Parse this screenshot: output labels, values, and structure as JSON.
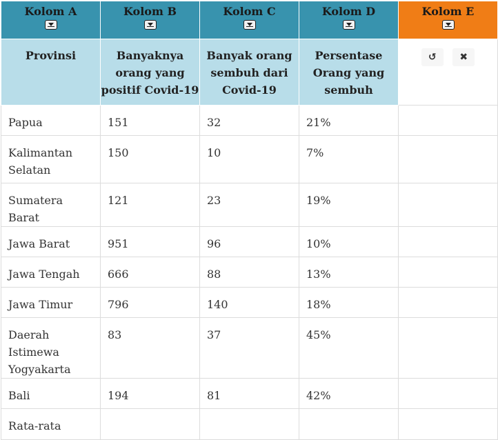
{
  "columns": [
    {
      "label": "Kolom A"
    },
    {
      "label": "Kolom B"
    },
    {
      "label": "Kolom C"
    },
    {
      "label": "Kolom D"
    },
    {
      "label": "Kolom E"
    }
  ],
  "subheaders": [
    "Provinsi",
    "Banyaknya orang yang positif Covid-19",
    "Banyak orang sembuh dari Covid-19",
    "Persentase Orang yang sembuh"
  ],
  "tools": {
    "undo_icon": "↺",
    "clear_icon": "✖"
  },
  "rows": [
    {
      "a": "Papua",
      "b": "151",
      "c": "32",
      "d": "21%",
      "e": ""
    },
    {
      "a": "Kalimantan Selatan",
      "b": "150",
      "c": "10",
      "d": "7%",
      "e": ""
    },
    {
      "a": "Sumatera Barat",
      "b": "121",
      "c": "23",
      "d": "19%",
      "e": ""
    },
    {
      "a": "Jawa Barat",
      "b": "951",
      "c": "96",
      "d": "10%",
      "e": ""
    },
    {
      "a": "Jawa Tengah",
      "b": "666",
      "c": "88",
      "d": "13%",
      "e": ""
    },
    {
      "a": "Jawa Timur",
      "b": "796",
      "c": "140",
      "d": "18%",
      "e": ""
    },
    {
      "a": "Daerah Istimewa Yogyakarta",
      "b": "83",
      "c": "37",
      "d": "45%",
      "e": ""
    },
    {
      "a": "Bali",
      "b": "194",
      "c": "81",
      "d": "42%",
      "e": ""
    },
    {
      "a": "Rata-rata",
      "b": "",
      "c": "",
      "d": "",
      "e": ""
    }
  ]
}
